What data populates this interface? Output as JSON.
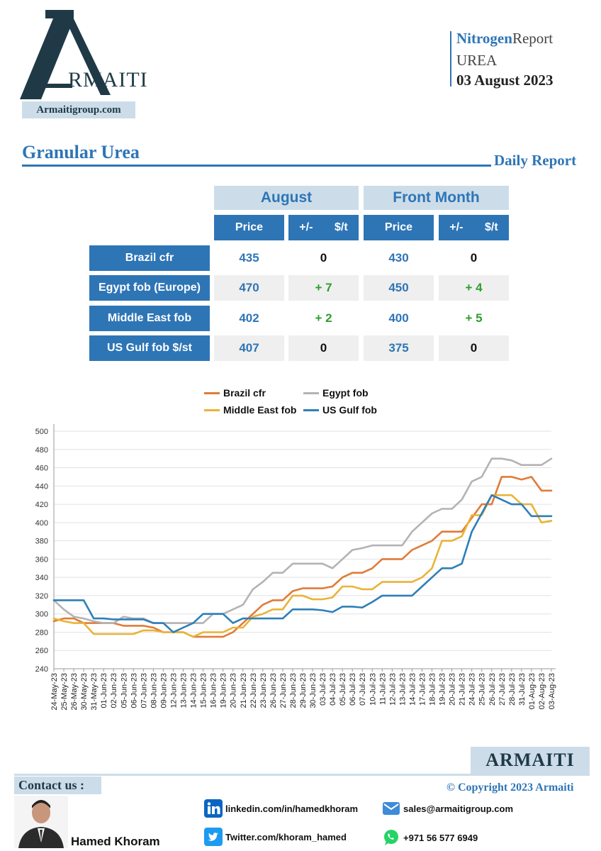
{
  "header": {
    "logo_text": "RMAITI",
    "website": "Armaitigroup.com",
    "report_word1": "Nitrogen",
    "report_word2": "Report",
    "product": "UREA",
    "date": "03 August 2023"
  },
  "section": {
    "title": "Granular Urea",
    "subtitle": "Daily Report"
  },
  "table": {
    "group_headers": [
      "August",
      "Front Month"
    ],
    "col_price": "Price",
    "col_change_a": "+/-",
    "col_change_b": "$/t",
    "rows": [
      {
        "label": "Brazil cfr",
        "aug_price": "435",
        "aug_change": "0",
        "fm_price": "430",
        "fm_change": "0"
      },
      {
        "label": "Egypt fob (Europe)",
        "aug_price": "470",
        "aug_change": "+ 7",
        "fm_price": "450",
        "fm_change": "+ 4"
      },
      {
        "label": "Middle East fob",
        "aug_price": "402",
        "aug_change": "+ 2",
        "fm_price": "400",
        "fm_change": "+ 5"
      },
      {
        "label": "US Gulf fob $/st",
        "aug_price": "407",
        "aug_change": "0",
        "fm_price": "375",
        "fm_change": "0"
      }
    ]
  },
  "chart_data": {
    "type": "line",
    "title": "",
    "xlabel": "",
    "ylabel": "",
    "ylim": [
      240,
      500
    ],
    "yticks": [
      240,
      260,
      280,
      300,
      320,
      340,
      360,
      380,
      400,
      420,
      440,
      460,
      480,
      500
    ],
    "grid": "horizontal",
    "legend_position": "top",
    "categories": [
      "24-May-23",
      "25-May-23",
      "26-May-23",
      "30-May-23",
      "31-May-23",
      "01-Jun-23",
      "02-Jun-23",
      "05-Jun-23",
      "06-Jun-23",
      "07-Jun-23",
      "08-Jun-23",
      "09-Jun-23",
      "12-Jun-23",
      "13-Jun-23",
      "14-Jun-23",
      "15-Jun-23",
      "16-Jun-23",
      "19-Jun-23",
      "20-Jun-23",
      "21-Jun-23",
      "22-Jun-23",
      "23-Jun-23",
      "26-Jun-23",
      "27-Jun-23",
      "28-Jun-23",
      "29-Jun-23",
      "30-Jun-23",
      "03-Jul-23",
      "04-Jul-23",
      "05-Jul-23",
      "06-Jul-23",
      "07-Jul-23",
      "10-Jul-23",
      "11-Jul-23",
      "12-Jul-23",
      "13-Jul-23",
      "14-Jul-23",
      "17-Jul-23",
      "18-Jul-23",
      "19-Jul-23",
      "20-Jul-23",
      "21-Jul-23",
      "24-Jul-23",
      "25-Jul-23",
      "26-Jul-23",
      "27-Jul-23",
      "28-Jul-23",
      "31-Jul-23",
      "01-Aug-23",
      "02-Aug-23",
      "03-Aug-23"
    ],
    "series": [
      {
        "name": "Brazil cfr",
        "color": "#e07b39",
        "values": [
          292,
          295,
          295,
          290,
          290,
          290,
          290,
          287,
          287,
          287,
          285,
          280,
          280,
          280,
          275,
          275,
          275,
          275,
          280,
          290,
          300,
          310,
          315,
          315,
          325,
          328,
          328,
          328,
          330,
          340,
          345,
          345,
          350,
          360,
          360,
          360,
          370,
          375,
          380,
          390,
          390,
          390,
          405,
          420,
          420,
          450,
          450,
          447,
          450,
          435,
          435
        ]
      },
      {
        "name": "Egypt fob",
        "color": "#b3b3b3",
        "values": [
          315,
          305,
          297,
          295,
          292,
          290,
          290,
          297,
          295,
          295,
          290,
          290,
          290,
          290,
          290,
          290,
          300,
          300,
          305,
          310,
          327,
          335,
          345,
          345,
          355,
          355,
          355,
          355,
          350,
          360,
          370,
          372,
          375,
          375,
          375,
          375,
          390,
          400,
          410,
          415,
          415,
          425,
          445,
          450,
          470,
          470,
          468,
          463,
          463,
          463,
          470
        ]
      },
      {
        "name": "Middle East fob",
        "color": "#e8b437",
        "values": [
          295,
          292,
          290,
          290,
          278,
          278,
          278,
          278,
          278,
          282,
          282,
          280,
          280,
          280,
          275,
          280,
          280,
          280,
          285,
          285,
          297,
          300,
          305,
          305,
          320,
          320,
          316,
          316,
          318,
          330,
          330,
          327,
          327,
          335,
          335,
          335,
          335,
          340,
          350,
          380,
          380,
          385,
          408,
          408,
          430,
          430,
          430,
          420,
          420,
          400,
          402
        ]
      },
      {
        "name": "US Gulf fob",
        "color": "#2e7fb8",
        "values": [
          315,
          315,
          315,
          315,
          295,
          295,
          294,
          294,
          294,
          294,
          290,
          290,
          280,
          285,
          290,
          300,
          300,
          300,
          290,
          295,
          295,
          295,
          295,
          295,
          305,
          305,
          305,
          304,
          302,
          308,
          308,
          307,
          313,
          320,
          320,
          320,
          320,
          330,
          340,
          350,
          350,
          355,
          390,
          410,
          430,
          425,
          420,
          420,
          407,
          407,
          407
        ]
      }
    ]
  },
  "footer": {
    "brand": "ARMAITI",
    "contact_label": "Contact us :",
    "copyright": "© Copyright 2023 Armaiti",
    "person_name": "Hamed Khoram",
    "linkedin": "linkedin.com/in/hamedkhoram",
    "twitter": "Twitter.com/khoram_hamed",
    "email": "sales@armaitigroup.com",
    "phone": "+971 56 577 6949"
  }
}
